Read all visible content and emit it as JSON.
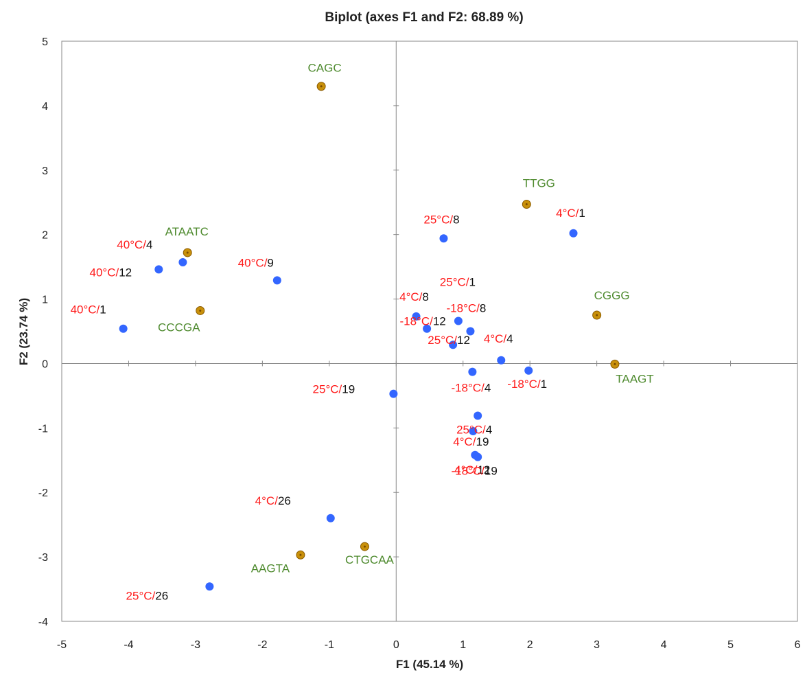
{
  "colors": {
    "observation_marker": "#3366ff",
    "variable_marker": "#c8900a",
    "variable_label": "#4e8a2e",
    "label_prefix": "#ff1a1a",
    "label_suffix": "#111111"
  },
  "chart_data": {
    "type": "scatter",
    "title": "Biplot (axes F1 and F2: 68.89 %)",
    "xlabel": "F1 (45.14 %)",
    "ylabel": "F2 (23.74 %)",
    "xlim": [
      -5,
      6
    ],
    "ylim": [
      -4,
      5
    ],
    "xticks": [
      "-5",
      "-4",
      "-3",
      "-2",
      "-1",
      "0",
      "1",
      "2",
      "3",
      "4",
      "5",
      "6"
    ],
    "yticks": [
      "-4",
      "-3",
      "-2",
      "-1",
      "0",
      "1",
      "2",
      "3",
      "4",
      "5"
    ],
    "grid": false,
    "observations": [
      {
        "prefix": "40°C/",
        "suffix": "1",
        "x": -4.08,
        "y": 0.54
      },
      {
        "prefix": "40°C/",
        "suffix": "4",
        "x": -3.19,
        "y": 1.57
      },
      {
        "prefix": "40°C/",
        "suffix": "12",
        "x": -3.55,
        "y": 1.46
      },
      {
        "prefix": "40°C/",
        "suffix": "9",
        "x": -1.78,
        "y": 1.29
      },
      {
        "prefix": "25°C/",
        "suffix": "8",
        "x": 0.71,
        "y": 1.94
      },
      {
        "prefix": "4°C/",
        "suffix": "1",
        "x": 2.65,
        "y": 2.02
      },
      {
        "prefix": "4°C/",
        "suffix": "8",
        "x": 0.3,
        "y": 0.73
      },
      {
        "prefix": "25°C/",
        "suffix": "1",
        "x": 0.93,
        "y": 0.66
      },
      {
        "prefix": "-18°C/",
        "suffix": "8",
        "x": 1.11,
        "y": 0.5
      },
      {
        "prefix": "-18°C/",
        "suffix": "12",
        "x": 0.46,
        "y": 0.54
      },
      {
        "prefix": "25°C/",
        "suffix": "12",
        "x": 0.85,
        "y": 0.29
      },
      {
        "prefix": "4°C/",
        "suffix": "4",
        "x": 1.57,
        "y": 0.05
      },
      {
        "prefix": "-18°C/",
        "suffix": "4",
        "x": 1.14,
        "y": -0.13
      },
      {
        "prefix": "-18°C/",
        "suffix": "1",
        "x": 1.98,
        "y": -0.11
      },
      {
        "prefix": "25°C/",
        "suffix": "19",
        "x": -0.04,
        "y": -0.47
      },
      {
        "prefix": "25°C/",
        "suffix": "4",
        "x": 1.22,
        "y": -0.81
      },
      {
        "prefix": "4°C/",
        "suffix": "19",
        "x": 1.15,
        "y": -1.05
      },
      {
        "prefix": "4°C/",
        "suffix": "12",
        "x": 1.18,
        "y": -1.42
      },
      {
        "prefix": "-18°C/",
        "suffix": "19",
        "x": 1.22,
        "y": -1.45
      },
      {
        "prefix": "4°C/",
        "suffix": "26",
        "x": -0.98,
        "y": -2.4
      },
      {
        "prefix": "25°C/",
        "suffix": "26",
        "x": -2.79,
        "y": -3.46
      }
    ],
    "variables": [
      {
        "label": "CAGC",
        "x": -1.12,
        "y": 4.3
      },
      {
        "label": "TTGG",
        "x": 1.95,
        "y": 2.47
      },
      {
        "label": "ATAATC",
        "x": -3.12,
        "y": 1.72
      },
      {
        "label": "CCCGA",
        "x": -2.93,
        "y": 0.82
      },
      {
        "label": "CGGG",
        "x": 3.0,
        "y": 0.75
      },
      {
        "label": "TAAGT",
        "x": 3.27,
        "y": -0.01
      },
      {
        "label": "CTGCAA",
        "x": -0.47,
        "y": -2.84
      },
      {
        "label": "AAGTA",
        "x": -1.43,
        "y": -2.97
      }
    ]
  }
}
